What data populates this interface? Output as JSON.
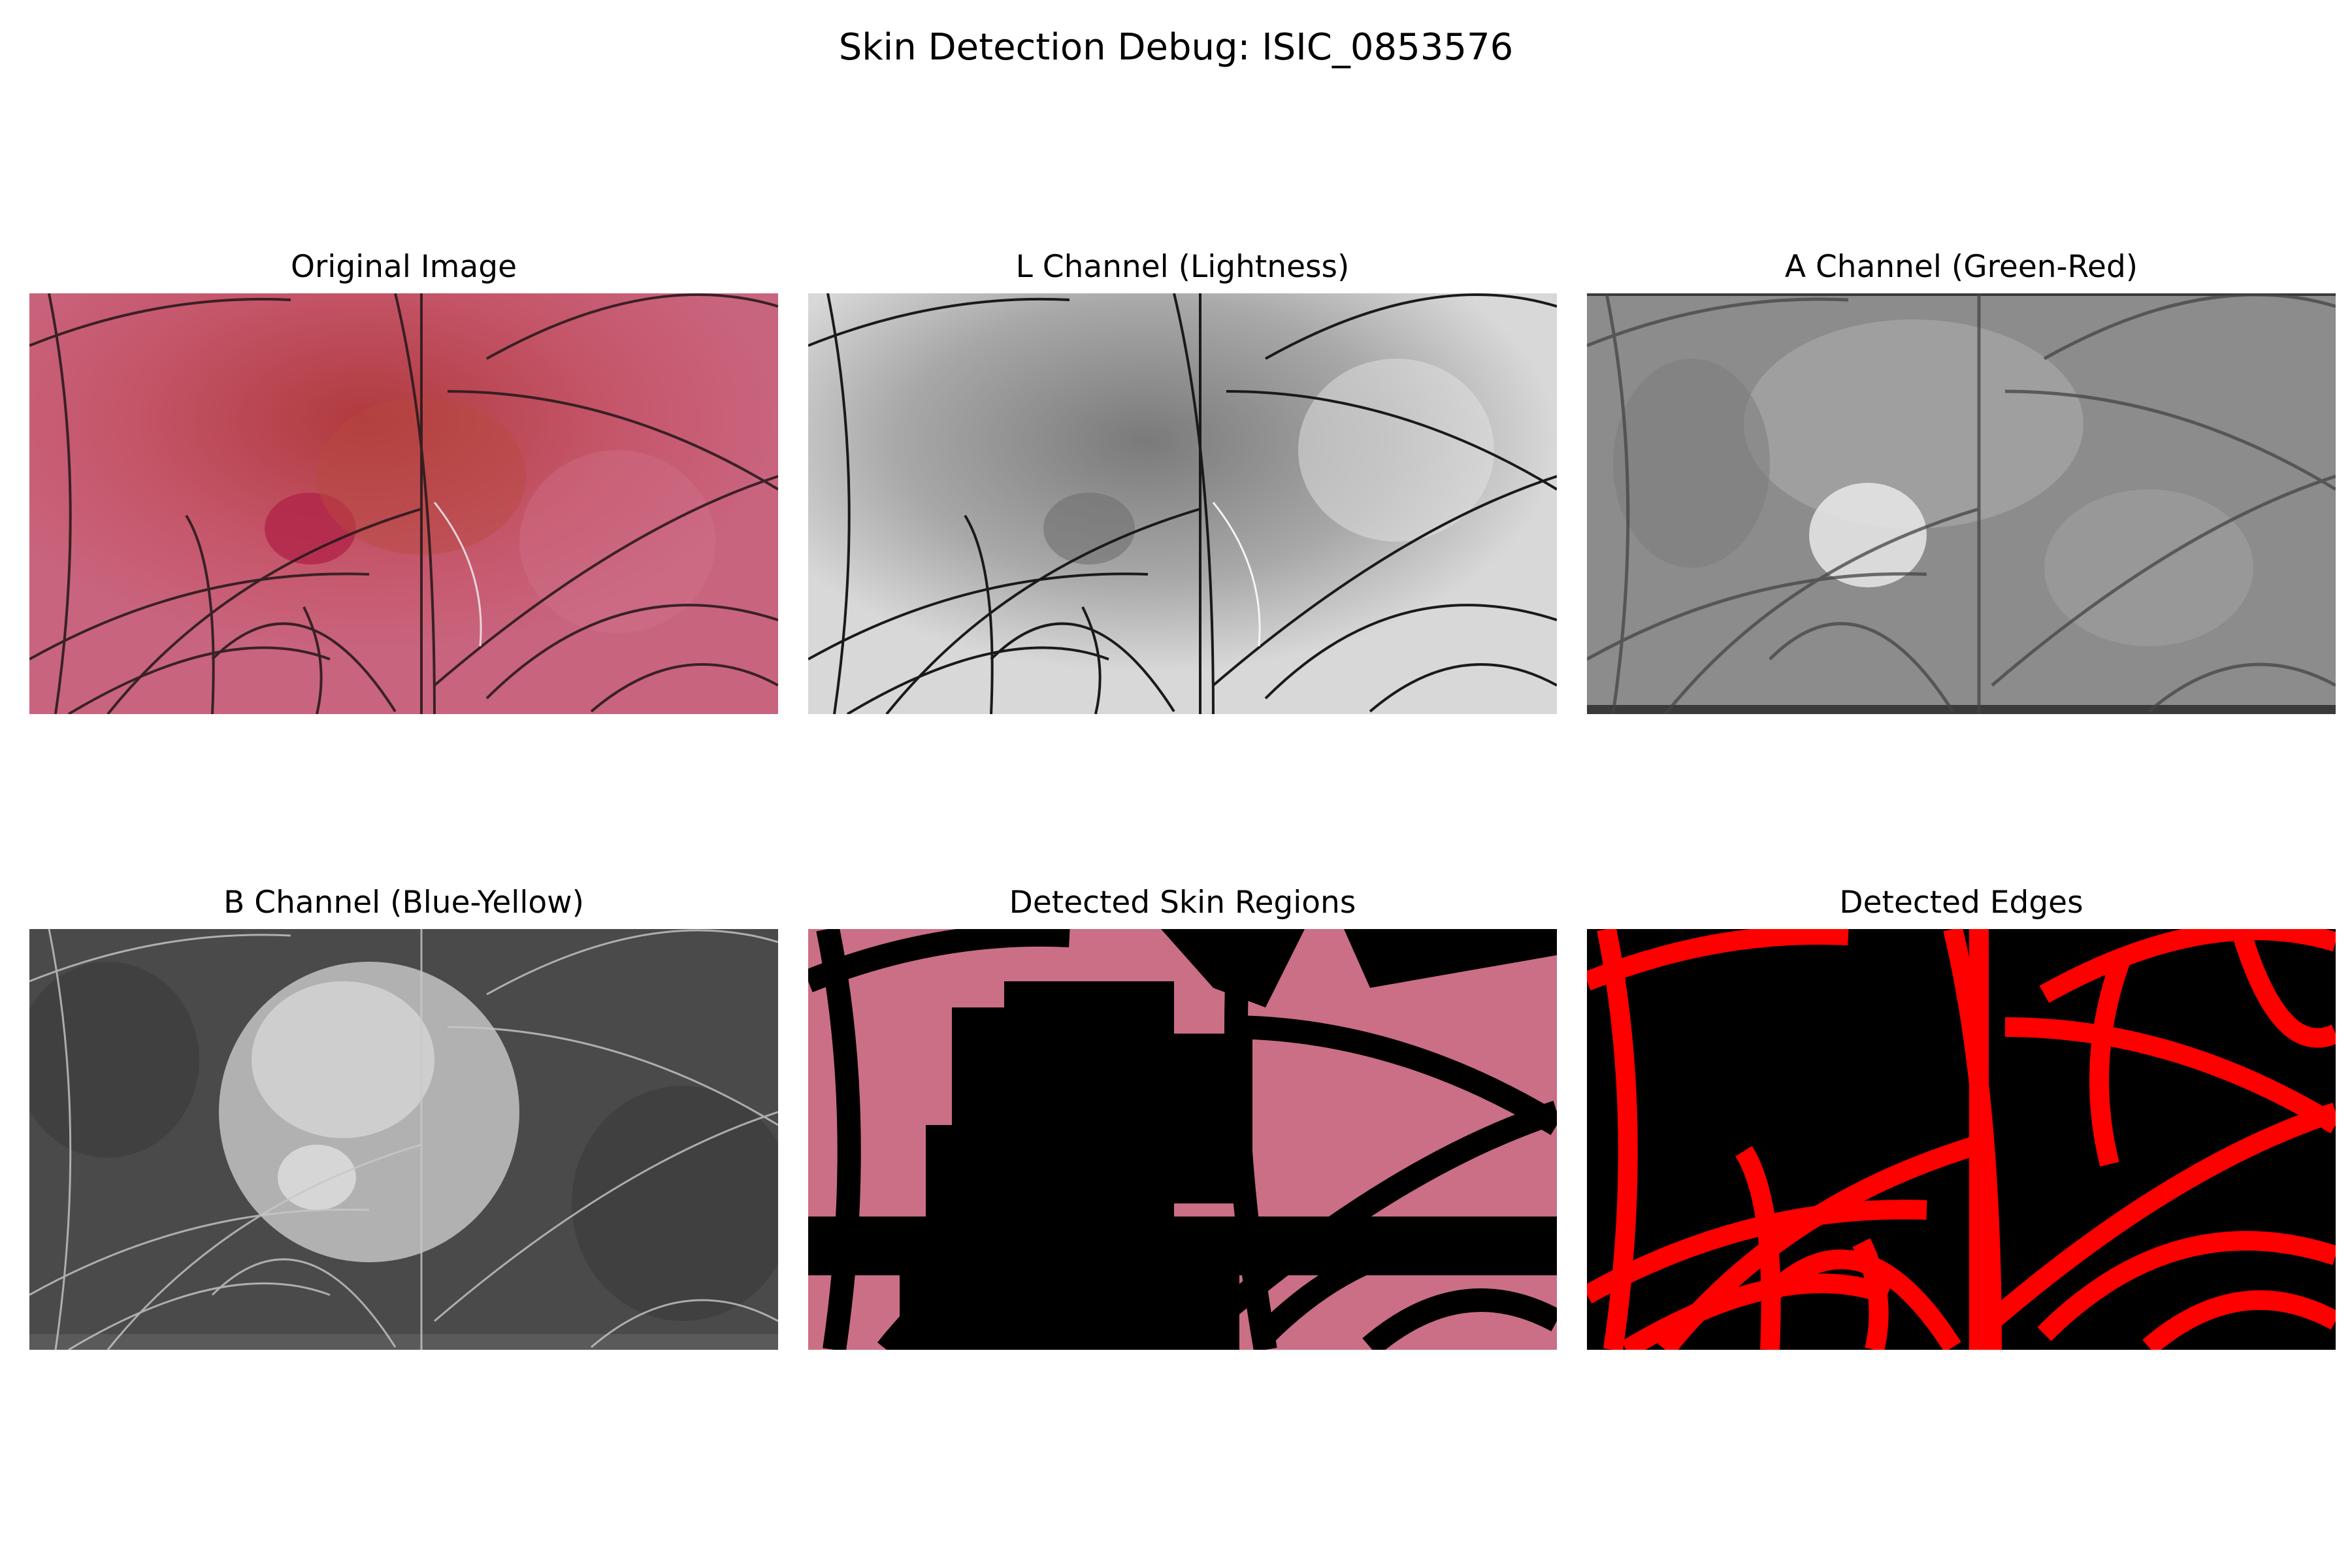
{
  "figure": {
    "title": "Skin Detection Debug: ISIC_0853576"
  },
  "panels": [
    {
      "title": "Original Image",
      "colormap": "rgb"
    },
    {
      "title": "L Channel (Lightness)",
      "colormap": "gray"
    },
    {
      "title": "A Channel (Green-Red)",
      "colormap": "gray"
    },
    {
      "title": "B Channel (Blue-Yellow)",
      "colormap": "gray"
    },
    {
      "title": "Detected Skin Regions",
      "colormap": "rgb-masked"
    },
    {
      "title": "Detected Edges",
      "colormap": "red-on-black"
    }
  ],
  "colors": {
    "skin_pink": "#c9607a",
    "lesion_red": "#b8304a",
    "hair_dark": "#2a1a1e",
    "edge_red": "#ff0000",
    "mask_black": "#000000"
  }
}
